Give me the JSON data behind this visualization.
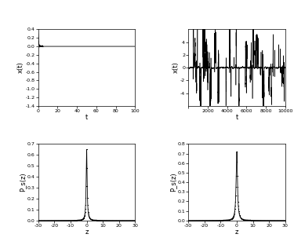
{
  "top_left": {
    "xlim": [
      0,
      100
    ],
    "ylim": [
      -1.4,
      0.4
    ],
    "yticks": [
      0.4,
      0.2,
      0.0,
      -0.2,
      -0.4,
      -0.6,
      -0.8,
      -1.0,
      -1.2,
      -1.4
    ],
    "xticks": [
      0,
      20,
      40,
      60,
      80,
      100
    ],
    "xlabel": "t",
    "ylabel": "x(t)"
  },
  "top_right": {
    "xlim": [
      0,
      10000
    ],
    "ylim": [
      -6,
      6
    ],
    "yticks": [
      -4,
      -2,
      0,
      2,
      4
    ],
    "xticks": [
      0,
      2000,
      4000,
      6000,
      8000,
      10000
    ],
    "xlabel": "t",
    "ylabel": "x(t)"
  },
  "bottom_left": {
    "xlim": [
      -30,
      30
    ],
    "ylim": [
      0,
      0.7
    ],
    "yticks": [
      0.0,
      0.1,
      0.2,
      0.3,
      0.4,
      0.5,
      0.6,
      0.7
    ],
    "xticks": [
      -30,
      -20,
      -10,
      0,
      10,
      20,
      30
    ],
    "xlabel": "z",
    "ylabel": "P_s(z)",
    "peak": 0.65,
    "scale": 0.35
  },
  "bottom_right": {
    "xlim": [
      -30,
      30
    ],
    "ylim": [
      0,
      0.8
    ],
    "yticks": [
      0.0,
      0.1,
      0.2,
      0.3,
      0.4,
      0.5,
      0.6,
      0.7,
      0.8
    ],
    "xticks": [
      -30,
      -20,
      -10,
      0,
      10,
      20,
      30
    ],
    "xlabel": "z",
    "ylabel": "P_s(z)",
    "peak": 0.72,
    "scale": 0.5
  },
  "line_color": "black",
  "dot_color": "black"
}
